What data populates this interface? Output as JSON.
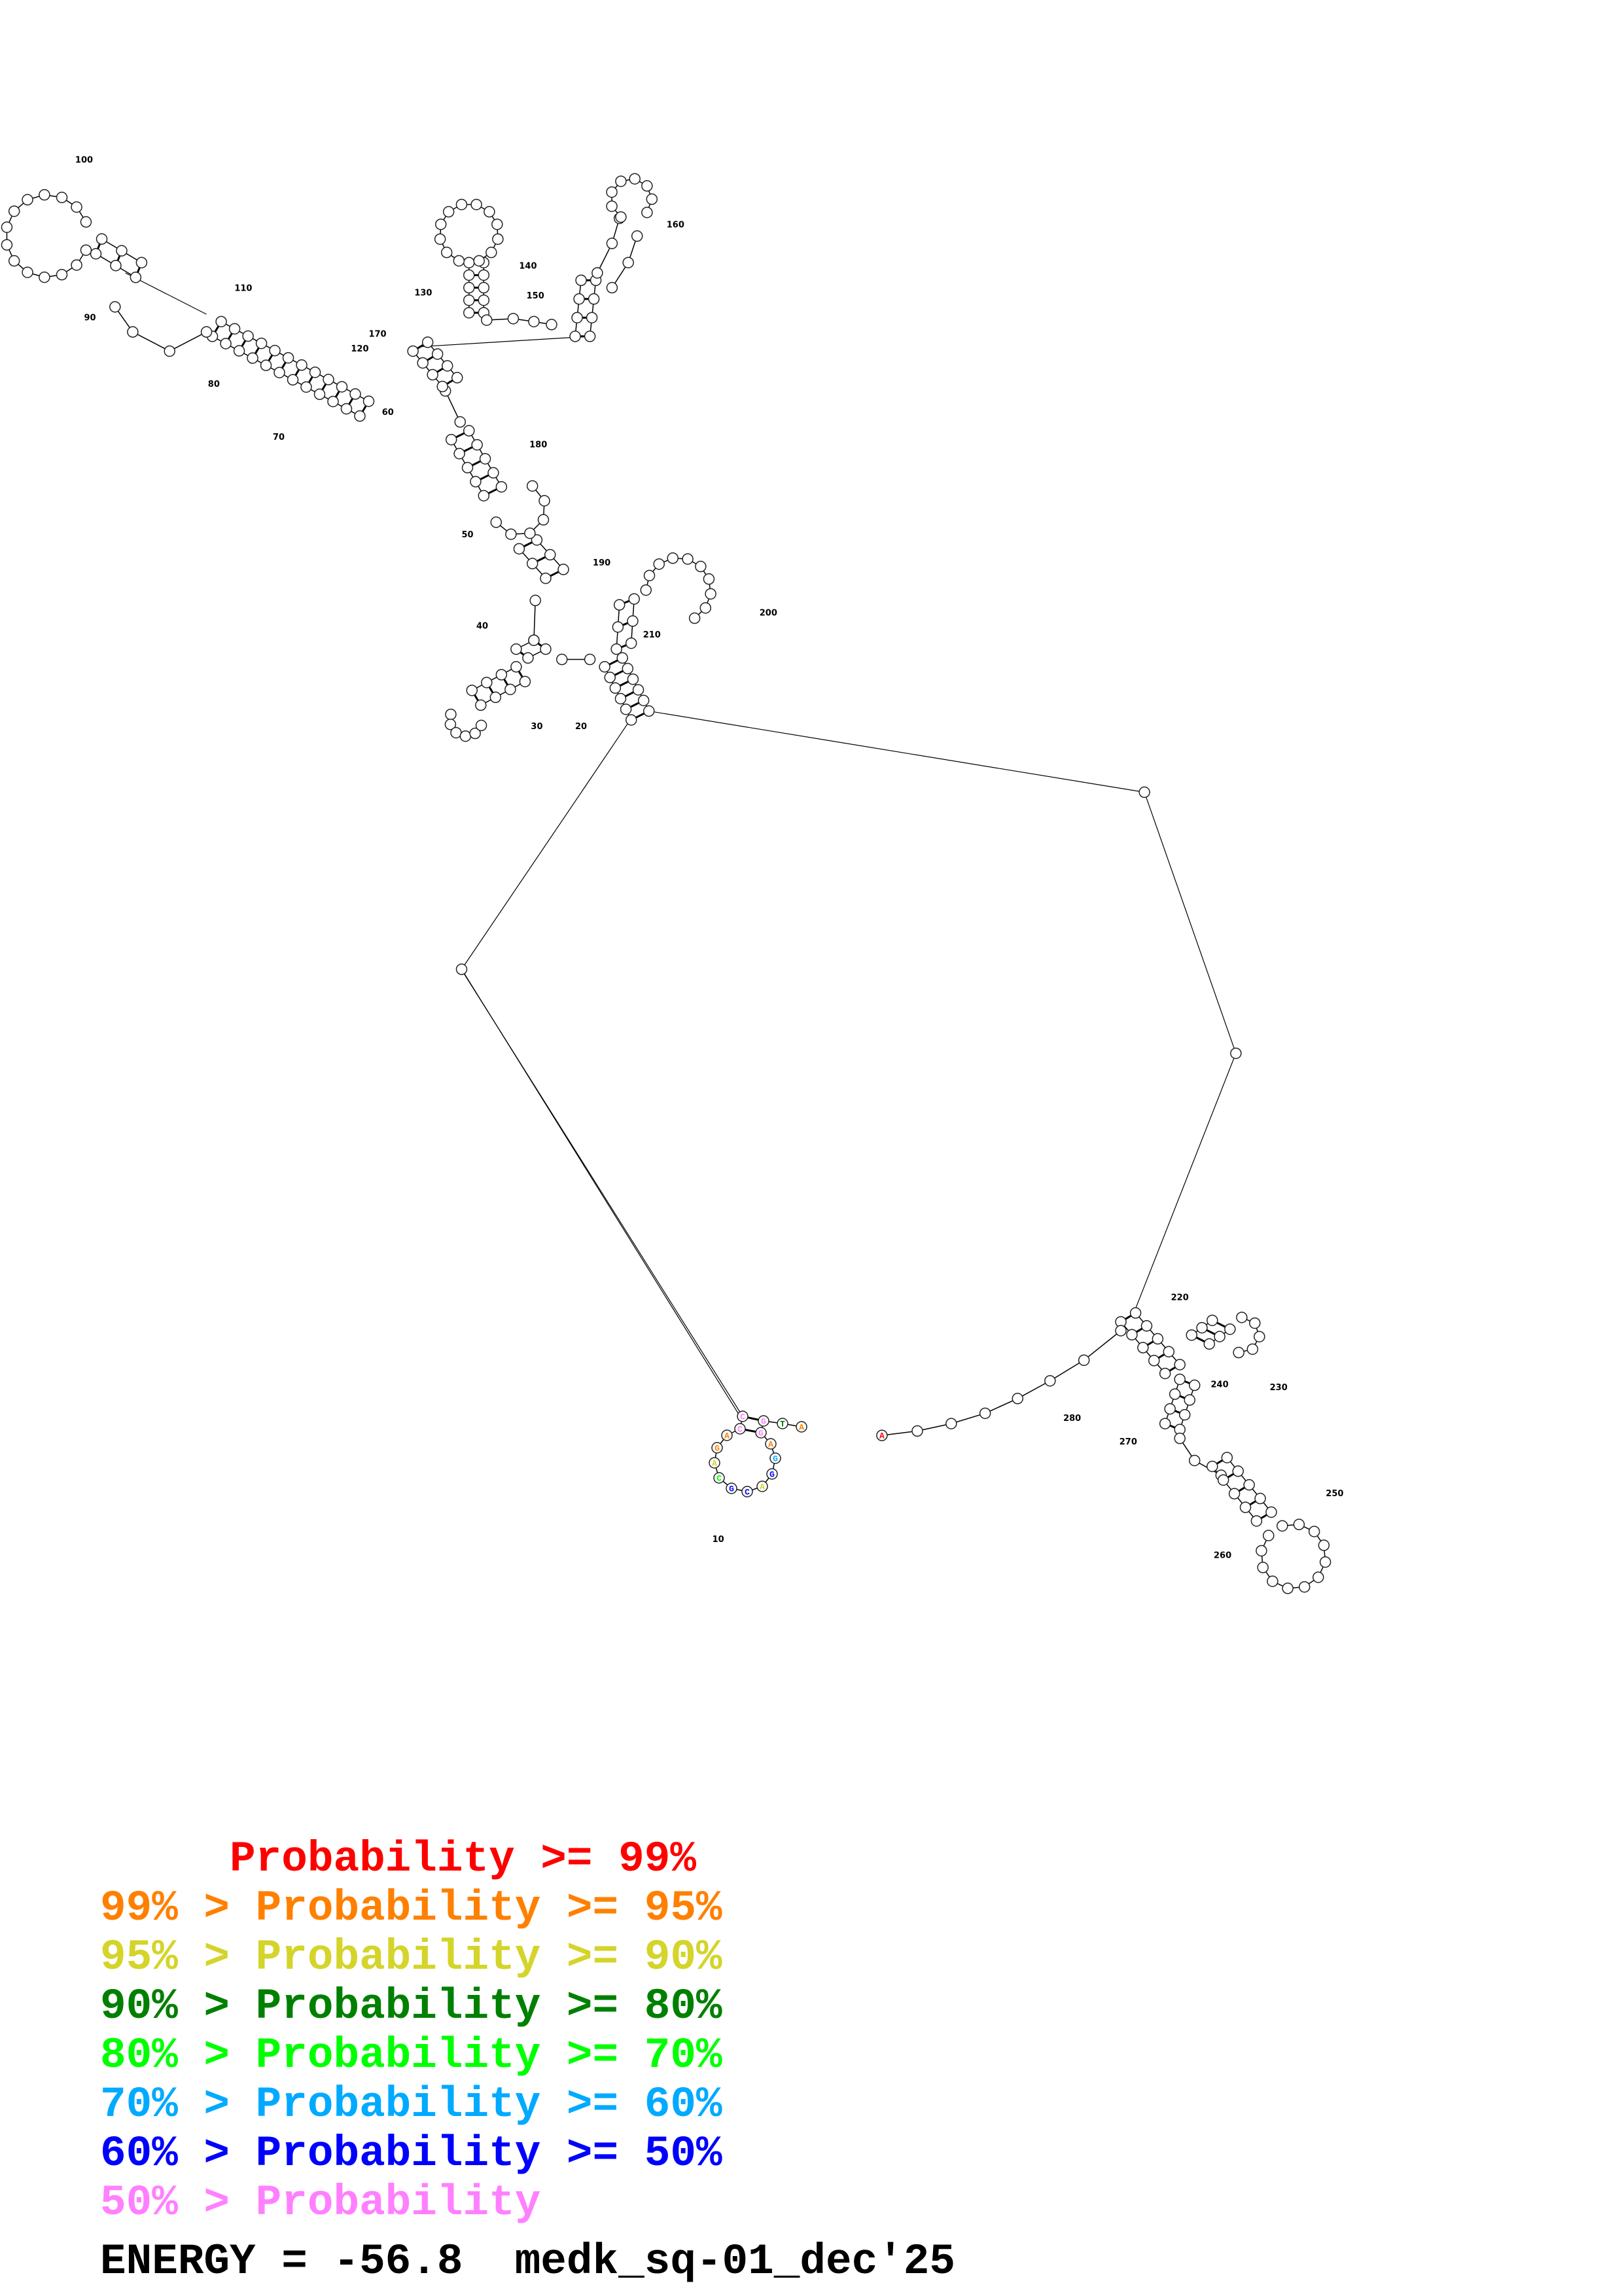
{
  "diagram": {
    "type": "RNA secondary structure",
    "position_labels": [
      "10",
      "20",
      "30",
      "40",
      "50",
      "60",
      "70",
      "80",
      "90",
      "100",
      "110",
      "120",
      "130",
      "140",
      "150",
      "160",
      "170",
      "180",
      "190",
      "200",
      "210",
      "220",
      "230",
      "240",
      "250",
      "260",
      "270",
      "280"
    ],
    "nucleotides_5prime": [
      {
        "pos": 1,
        "base": "A",
        "class": "p95"
      },
      {
        "pos": 2,
        "base": "T",
        "class": "p80"
      },
      {
        "pos": 3,
        "base": "G",
        "class": "lt50"
      },
      {
        "pos": 4,
        "base": "G",
        "class": "lt50"
      },
      {
        "pos": 5,
        "base": "A",
        "class": "p95"
      },
      {
        "pos": 6,
        "base": "G",
        "class": "p60"
      },
      {
        "pos": 7,
        "base": "G",
        "class": "p50"
      },
      {
        "pos": 8,
        "base": "A",
        "class": "p90"
      },
      {
        "pos": 9,
        "base": "C",
        "class": "p50"
      },
      {
        "pos": 10,
        "base": "G",
        "class": "p50"
      },
      {
        "pos": 11,
        "base": "C",
        "class": "p70"
      },
      {
        "pos": 12,
        "base": "A",
        "class": "p90"
      },
      {
        "pos": 13,
        "base": "G",
        "class": "p95"
      },
      {
        "pos": 14,
        "base": "A",
        "class": "p95"
      },
      {
        "pos": 15,
        "base": "C",
        "class": "lt50"
      },
      {
        "pos": 16,
        "base": "C",
        "class": "lt50"
      }
    ],
    "three_prime_end": {
      "base": "A",
      "class": "p99"
    }
  },
  "colors": {
    "p99": "#ff0000",
    "p95": "#ff8000",
    "p90": "#d4d42a",
    "p80": "#008000",
    "p70": "#00ff00",
    "p60": "#00aaff",
    "p50": "#0000ff",
    "lt50": "#ff80ff"
  },
  "legend": [
    {
      "text": "     Probability >= 99%",
      "class": "p99"
    },
    {
      "text": "99% > Probability >= 95%",
      "class": "p95"
    },
    {
      "text": "95% > Probability >= 90%",
      "class": "p90"
    },
    {
      "text": "90% > Probability >= 80%",
      "class": "p80"
    },
    {
      "text": "80% > Probability >= 70%",
      "class": "p70"
    },
    {
      "text": "70% > Probability >= 60%",
      "class": "p60"
    },
    {
      "text": "60% > Probability >= 50%",
      "class": "p50"
    },
    {
      "text": "50% > Probability",
      "class": "lt50"
    }
  ],
  "footer": {
    "energy_text": "ENERGY = -56.8  medk_sq-01_dec'25"
  }
}
